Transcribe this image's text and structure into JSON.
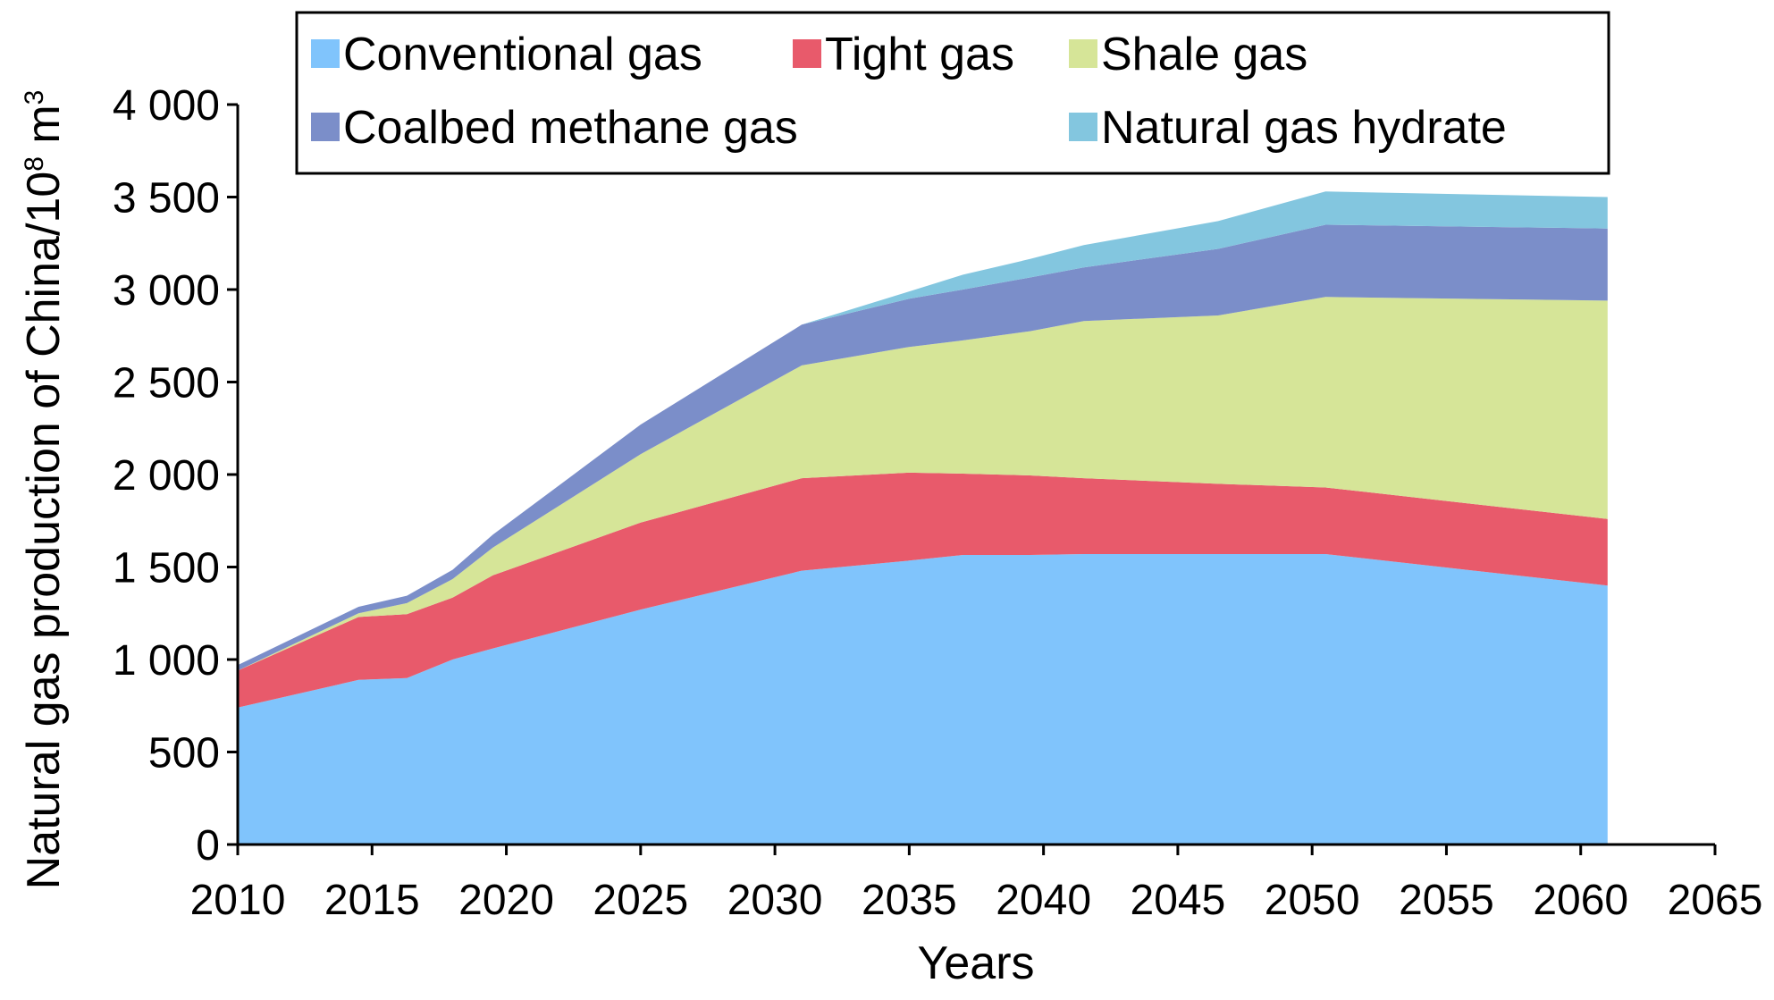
{
  "chart_data": {
    "type": "area",
    "stacked": true,
    "xlabel": "Years",
    "ylabel_parts": {
      "prefix": "Natural gas production of China/10",
      "exponent": "8",
      "middle": " m",
      "unit_exponent": "3"
    },
    "xlim": [
      2010,
      2065
    ],
    "ylim": [
      0,
      4000
    ],
    "x_ticks": [
      2010,
      2015,
      2020,
      2025,
      2030,
      2035,
      2040,
      2045,
      2050,
      2055,
      2060,
      2065
    ],
    "x_tick_labels": [
      "2010",
      "2015",
      "2020",
      "2025",
      "2030",
      "2035",
      "2040",
      "2045",
      "2050",
      "2055",
      "2060",
      "2065"
    ],
    "y_ticks": [
      0,
      500,
      1000,
      1500,
      2000,
      2500,
      3000,
      3500,
      4000
    ],
    "y_tick_labels": [
      "0",
      "500",
      "1 000",
      "1 500",
      "2 000",
      "2 500",
      "3 000",
      "3 500",
      "4 000"
    ],
    "legend_position": "top",
    "x": [
      2010,
      2014.5,
      2016.3,
      2018,
      2019.5,
      2025,
      2031,
      2035,
      2037,
      2039.5,
      2041.5,
      2046.5,
      2050.5,
      2061
    ],
    "series": [
      {
        "name": "Conventional gas",
        "color": "#80c4fc",
        "values": [
          740,
          890,
          900,
          1000,
          1060,
          1270,
          1480,
          1535,
          1565,
          1565,
          1570,
          1570,
          1570,
          1400
        ]
      },
      {
        "name": "Tight gas",
        "color": "#e85a6b",
        "values": [
          200,
          340,
          345,
          335,
          395,
          470,
          500,
          475,
          440,
          430,
          410,
          380,
          360,
          360
        ]
      },
      {
        "name": "Shale gas",
        "color": "#d6e598",
        "values": [
          0,
          20,
          60,
          100,
          150,
          370,
          610,
          680,
          720,
          780,
          850,
          910,
          1030,
          1180
        ]
      },
      {
        "name": "Coalbed methane gas",
        "color": "#7b8ec9",
        "values": [
          30,
          35,
          40,
          50,
          70,
          160,
          220,
          260,
          275,
          290,
          290,
          360,
          390,
          390
        ]
      },
      {
        "name": "Natural gas hydrate",
        "color": "#83c6df",
        "values": [
          0,
          0,
          0,
          0,
          0,
          0,
          0,
          40,
          80,
          100,
          120,
          150,
          180,
          170
        ]
      }
    ]
  }
}
